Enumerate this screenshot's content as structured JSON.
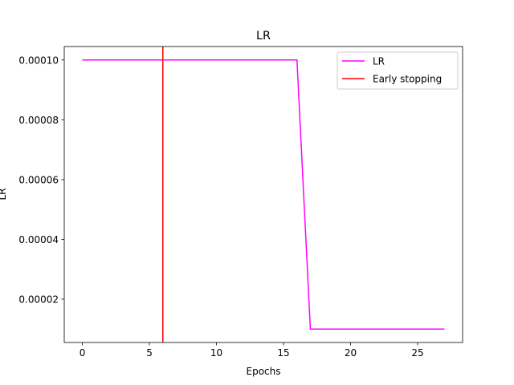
{
  "chart_data": {
    "type": "line",
    "title": "LR",
    "xlabel": "Epochs",
    "ylabel": "LR",
    "xlim": [
      -1.35,
      28.35
    ],
    "ylim": [
      5.5e-06,
      0.0001045
    ],
    "x_ticks": [
      0,
      5,
      10,
      15,
      20,
      25
    ],
    "x_tick_labels": [
      "0",
      "5",
      "10",
      "15",
      "20",
      "25"
    ],
    "y_ticks": [
      2e-05,
      4e-05,
      6e-05,
      8e-05,
      0.0001
    ],
    "y_tick_labels": [
      "0.00002",
      "0.00004",
      "0.00006",
      "0.00008",
      "0.00010"
    ],
    "grid": false,
    "legend_position": "top-right",
    "series": [
      {
        "name": "LR",
        "color": "#ff00ff",
        "x": [
          0,
          1,
          2,
          3,
          4,
          5,
          6,
          7,
          8,
          9,
          10,
          11,
          12,
          13,
          14,
          15,
          16,
          17,
          18,
          19,
          20,
          21,
          22,
          23,
          24,
          25,
          26,
          27
        ],
        "y": [
          0.0001,
          0.0001,
          0.0001,
          0.0001,
          0.0001,
          0.0001,
          0.0001,
          0.0001,
          0.0001,
          0.0001,
          0.0001,
          0.0001,
          0.0001,
          0.0001,
          0.0001,
          0.0001,
          0.0001,
          1e-05,
          1e-05,
          1e-05,
          1e-05,
          1e-05,
          1e-05,
          1e-05,
          1e-05,
          1e-05,
          1e-05,
          1e-05
        ]
      }
    ],
    "vlines": [
      {
        "name": "Early stopping",
        "color": "#ff0000",
        "x": 6
      }
    ]
  }
}
